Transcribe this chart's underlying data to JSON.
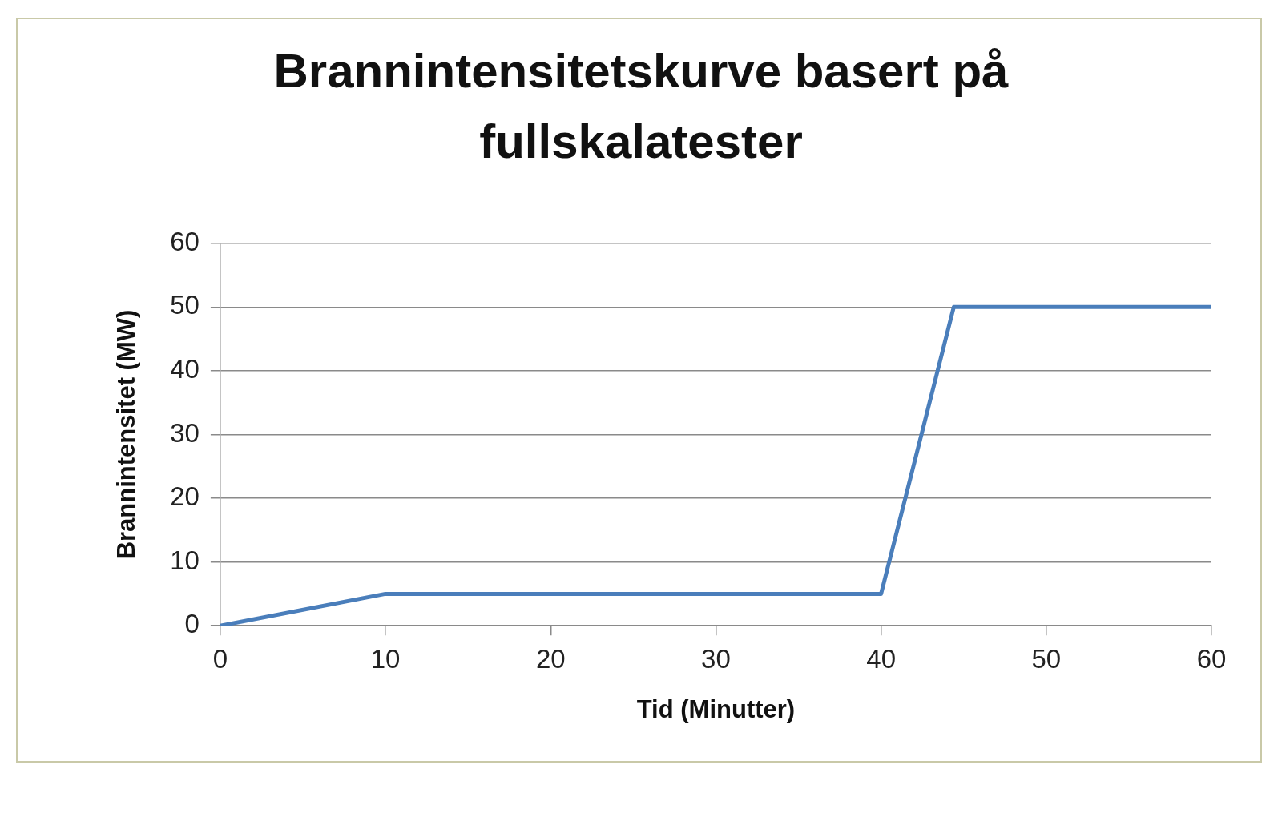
{
  "chart_data": {
    "type": "line",
    "title": "Brannintensitetskurve basert på fullskalatester",
    "xlabel": "Tid (Minutter)",
    "ylabel": "Brannintensitet (MW)",
    "x": [
      0,
      10,
      40,
      44.4,
      60
    ],
    "series": [
      {
        "color": "#4a7ebb",
        "values": [
          0,
          5,
          5,
          50,
          50
        ]
      }
    ],
    "xlim": [
      0,
      60
    ],
    "xticks": [
      0,
      10,
      20,
      30,
      40,
      50,
      60
    ],
    "ylim": [
      0,
      60
    ],
    "yticks": [
      0,
      10,
      20,
      30,
      40,
      50,
      60
    ],
    "grid": "y",
    "marker": "none"
  }
}
